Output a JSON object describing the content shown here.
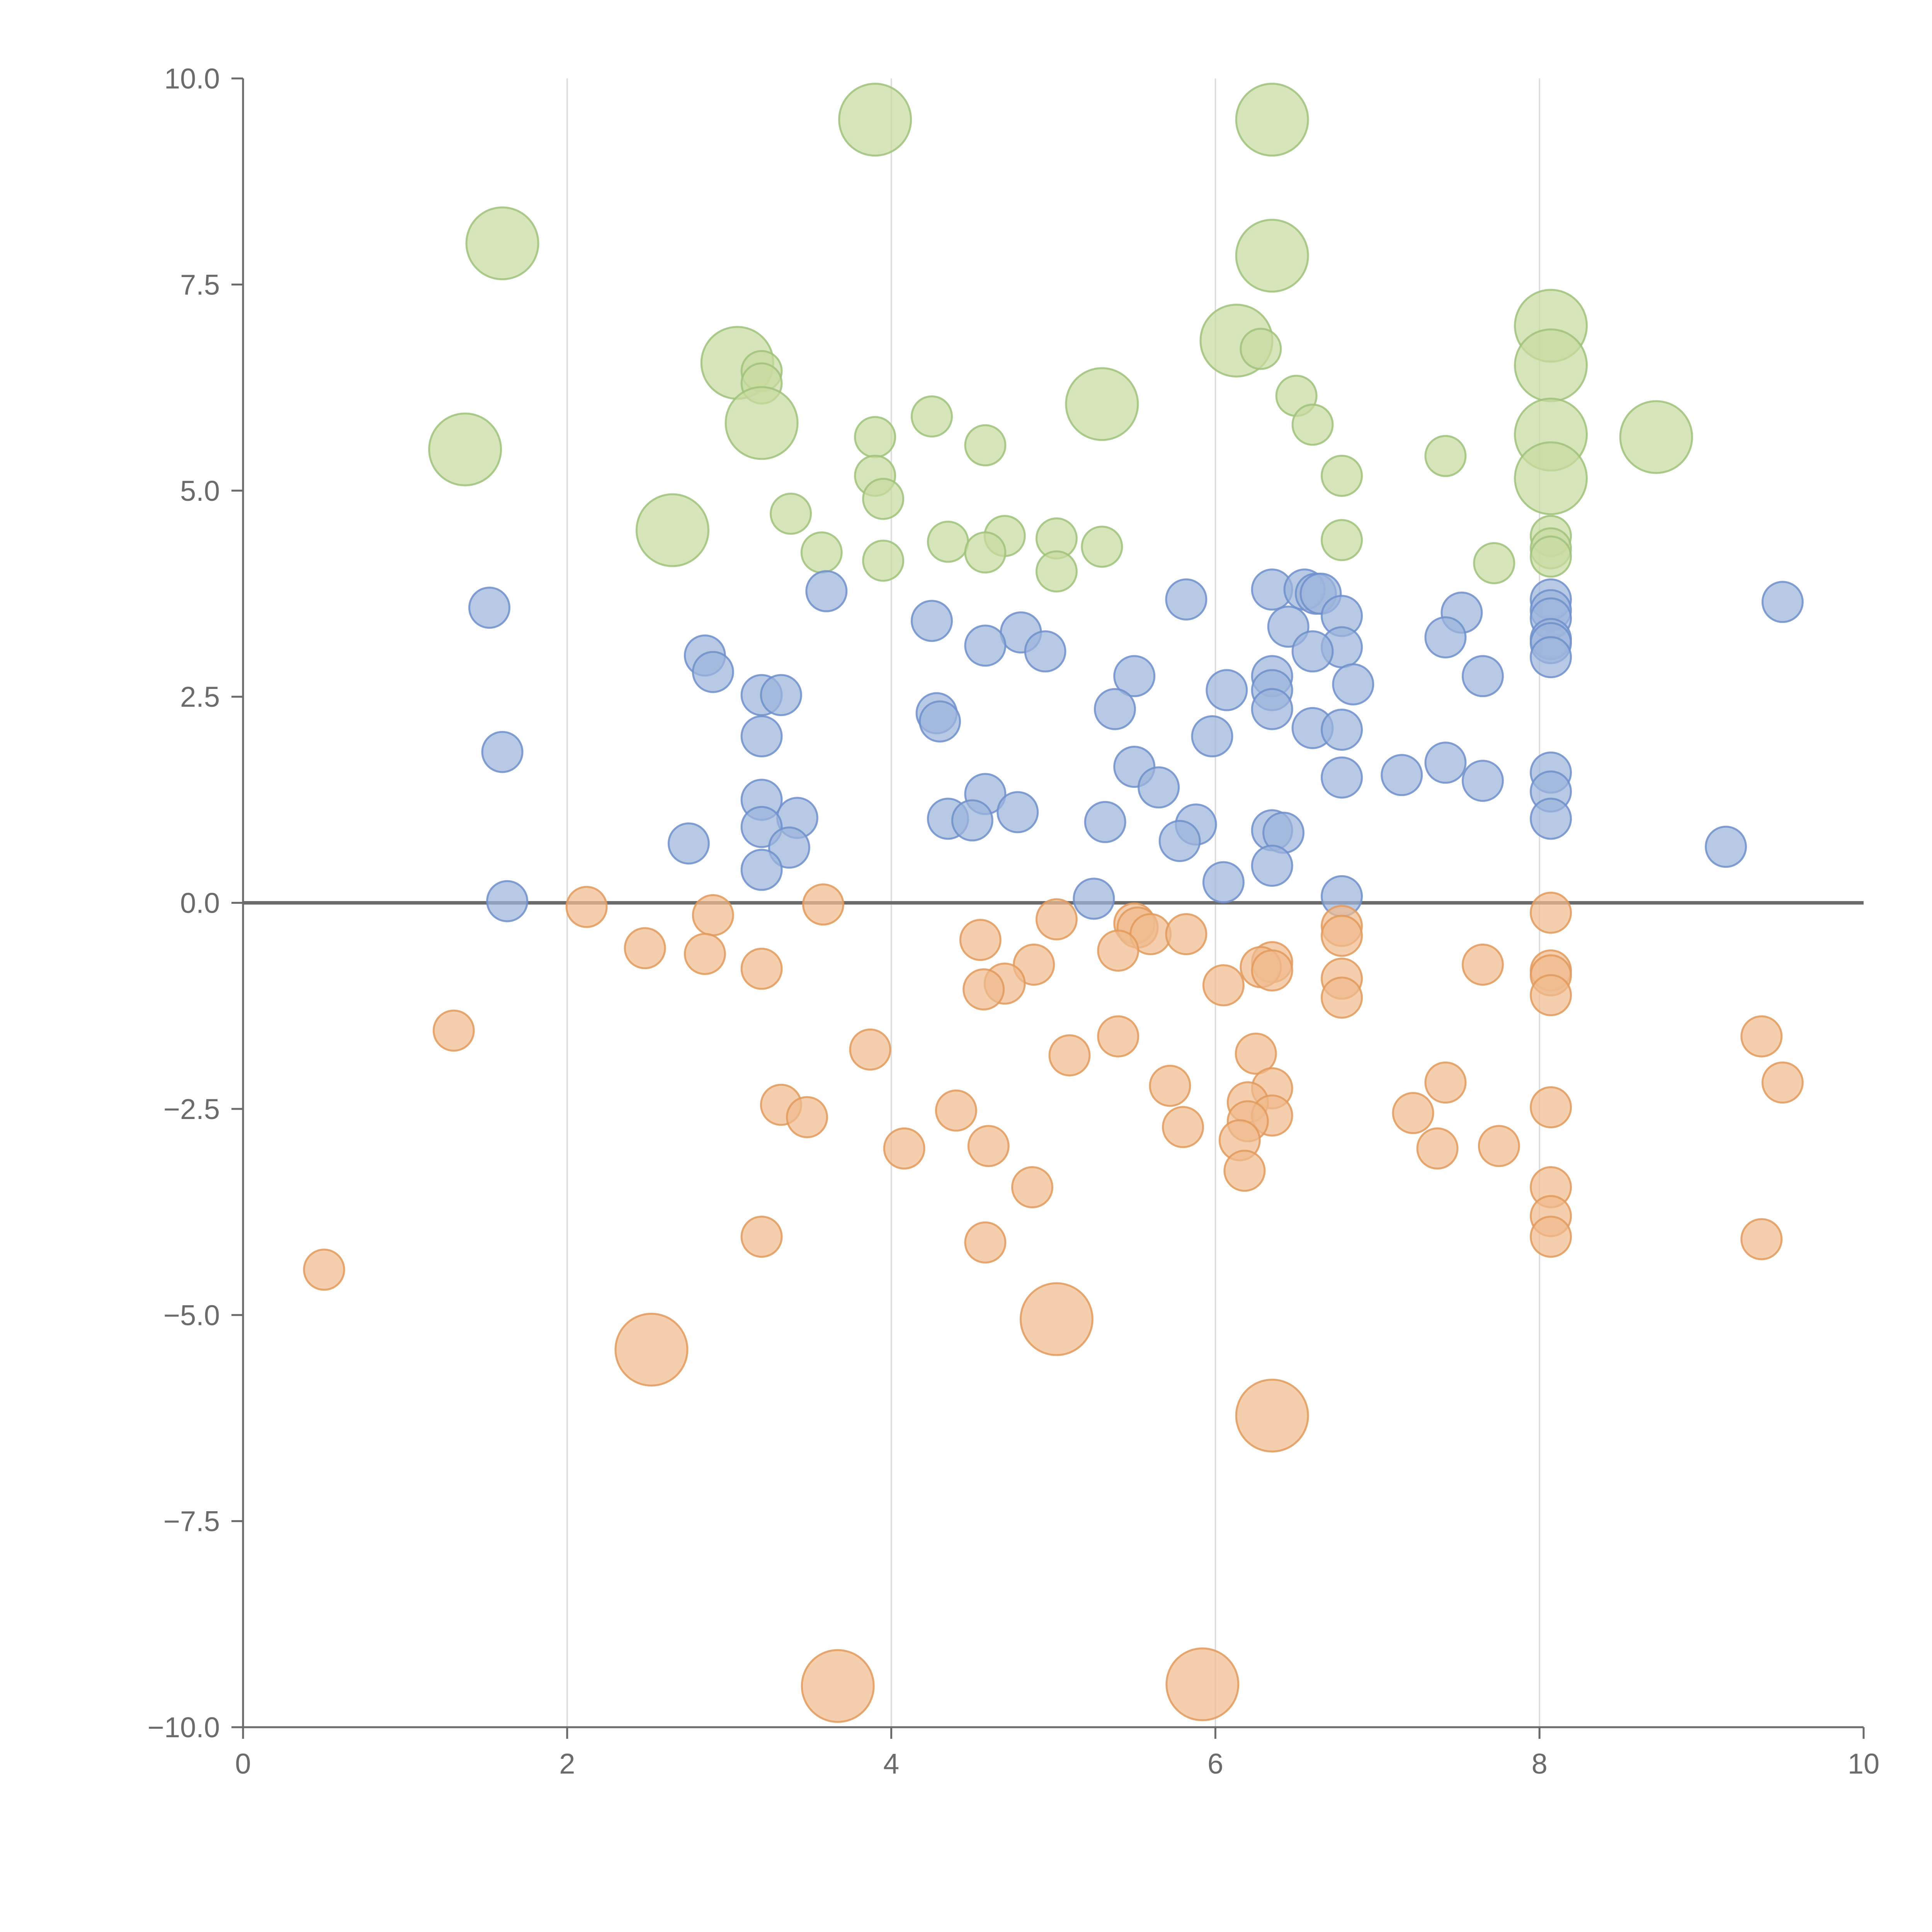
{
  "chart_data": {
    "type": "scatter",
    "title": "",
    "xlabel": "",
    "ylabel": "",
    "xlim": [
      0,
      10
    ],
    "ylim": [
      -10,
      10
    ],
    "x_ticks": [
      0,
      2,
      4,
      6,
      8,
      10
    ],
    "y_ticks": [
      -10.0,
      -7.5,
      -5.0,
      -2.5,
      0.0,
      2.5,
      5.0,
      7.5,
      10.0
    ],
    "x_tick_labels": [
      "0",
      "2",
      "4",
      "6",
      "8",
      "10"
    ],
    "y_tick_labels": [
      "−10.0",
      "−7.5",
      "−5.0",
      "−2.5",
      "0.0",
      "2.5",
      "5.0",
      "7.5",
      "10.0"
    ],
    "grid": {
      "vertical": true,
      "horizontal": false
    },
    "zero_line": true,
    "legend": "none",
    "colors": {
      "green": {
        "fill": "#c7dba0",
        "stroke": "#9fc27a"
      },
      "blue": {
        "fill": "#9db4dc",
        "stroke": "#6f8fcb"
      },
      "orange": {
        "fill": "#f0bb8e",
        "stroke": "#e29a5c"
      },
      "axis": "#6b6b6b",
      "grid": "#dcdcdc"
    },
    "series": [
      {
        "color_key": "green",
        "points": [
          {
            "x": 3.9,
            "y": 9.5,
            "size": "large"
          },
          {
            "x": 6.35,
            "y": 9.5,
            "size": "large"
          },
          {
            "x": 1.6,
            "y": 8.0,
            "size": "large"
          },
          {
            "x": 6.35,
            "y": 7.85,
            "size": "large"
          },
          {
            "x": 8.07,
            "y": 7.0,
            "size": "large"
          },
          {
            "x": 6.13,
            "y": 6.82,
            "size": "large"
          },
          {
            "x": 6.28,
            "y": 6.72,
            "size": "small"
          },
          {
            "x": 8.07,
            "y": 6.52,
            "size": "large"
          },
          {
            "x": 3.05,
            "y": 6.55,
            "size": "large"
          },
          {
            "x": 3.2,
            "y": 6.45,
            "size": "small"
          },
          {
            "x": 3.2,
            "y": 6.3,
            "size": "small"
          },
          {
            "x": 5.3,
            "y": 6.05,
            "size": "large"
          },
          {
            "x": 6.5,
            "y": 6.15,
            "size": "small"
          },
          {
            "x": 4.25,
            "y": 5.9,
            "size": "small"
          },
          {
            "x": 3.2,
            "y": 5.82,
            "size": "large"
          },
          {
            "x": 6.6,
            "y": 5.8,
            "size": "small"
          },
          {
            "x": 3.9,
            "y": 5.65,
            "size": "small"
          },
          {
            "x": 8.07,
            "y": 5.68,
            "size": "large"
          },
          {
            "x": 8.72,
            "y": 5.65,
            "size": "large"
          },
          {
            "x": 4.58,
            "y": 5.55,
            "size": "small"
          },
          {
            "x": 1.37,
            "y": 5.5,
            "size": "large"
          },
          {
            "x": 7.42,
            "y": 5.42,
            "size": "small"
          },
          {
            "x": 3.9,
            "y": 5.18,
            "size": "small"
          },
          {
            "x": 6.78,
            "y": 5.18,
            "size": "small"
          },
          {
            "x": 8.07,
            "y": 5.15,
            "size": "large"
          },
          {
            "x": 3.95,
            "y": 4.9,
            "size": "small"
          },
          {
            "x": 3.38,
            "y": 4.72,
            "size": "small"
          },
          {
            "x": 2.65,
            "y": 4.52,
            "size": "large"
          },
          {
            "x": 8.07,
            "y": 4.45,
            "size": "small"
          },
          {
            "x": 4.7,
            "y": 4.45,
            "size": "small"
          },
          {
            "x": 5.02,
            "y": 4.42,
            "size": "small"
          },
          {
            "x": 6.78,
            "y": 4.4,
            "size": "small"
          },
          {
            "x": 4.35,
            "y": 4.38,
            "size": "small"
          },
          {
            "x": 5.3,
            "y": 4.32,
            "size": "small"
          },
          {
            "x": 8.07,
            "y": 4.3,
            "size": "small"
          },
          {
            "x": 3.57,
            "y": 4.25,
            "size": "small"
          },
          {
            "x": 4.58,
            "y": 4.25,
            "size": "small"
          },
          {
            "x": 8.07,
            "y": 4.2,
            "size": "small"
          },
          {
            "x": 3.95,
            "y": 4.15,
            "size": "small"
          },
          {
            "x": 7.72,
            "y": 4.12,
            "size": "small"
          },
          {
            "x": 5.02,
            "y": 4.02,
            "size": "small"
          }
        ]
      },
      {
        "color_key": "blue",
        "points": [
          {
            "x": 6.35,
            "y": 3.8,
            "size": "small"
          },
          {
            "x": 6.55,
            "y": 3.8,
            "size": "small"
          },
          {
            "x": 6.62,
            "y": 3.75,
            "size": "small"
          },
          {
            "x": 6.65,
            "y": 3.75,
            "size": "small"
          },
          {
            "x": 3.6,
            "y": 3.78,
            "size": "small"
          },
          {
            "x": 5.82,
            "y": 3.68,
            "size": "small"
          },
          {
            "x": 8.07,
            "y": 3.68,
            "size": "small"
          },
          {
            "x": 9.5,
            "y": 3.65,
            "size": "small"
          },
          {
            "x": 1.52,
            "y": 3.58,
            "size": "small"
          },
          {
            "x": 8.07,
            "y": 3.55,
            "size": "small"
          },
          {
            "x": 7.52,
            "y": 3.52,
            "size": "small"
          },
          {
            "x": 6.78,
            "y": 3.48,
            "size": "small"
          },
          {
            "x": 8.07,
            "y": 3.45,
            "size": "small"
          },
          {
            "x": 4.25,
            "y": 3.42,
            "size": "small"
          },
          {
            "x": 6.45,
            "y": 3.35,
            "size": "small"
          },
          {
            "x": 4.8,
            "y": 3.28,
            "size": "small"
          },
          {
            "x": 7.42,
            "y": 3.22,
            "size": "small"
          },
          {
            "x": 8.07,
            "y": 3.2,
            "size": "small"
          },
          {
            "x": 8.07,
            "y": 3.15,
            "size": "small"
          },
          {
            "x": 4.58,
            "y": 3.12,
            "size": "small"
          },
          {
            "x": 6.78,
            "y": 3.1,
            "size": "small"
          },
          {
            "x": 6.6,
            "y": 3.05,
            "size": "small"
          },
          {
            "x": 4.95,
            "y": 3.05,
            "size": "small"
          },
          {
            "x": 2.85,
            "y": 3.0,
            "size": "small"
          },
          {
            "x": 8.07,
            "y": 2.98,
            "size": "small"
          },
          {
            "x": 2.9,
            "y": 2.8,
            "size": "small"
          },
          {
            "x": 5.5,
            "y": 2.75,
            "size": "small"
          },
          {
            "x": 6.35,
            "y": 2.75,
            "size": "small"
          },
          {
            "x": 7.65,
            "y": 2.75,
            "size": "small"
          },
          {
            "x": 6.85,
            "y": 2.65,
            "size": "small"
          },
          {
            "x": 6.35,
            "y": 2.58,
            "size": "small"
          },
          {
            "x": 6.07,
            "y": 2.58,
            "size": "small"
          },
          {
            "x": 3.2,
            "y": 2.52,
            "size": "small"
          },
          {
            "x": 3.32,
            "y": 2.52,
            "size": "small"
          },
          {
            "x": 5.38,
            "y": 2.35,
            "size": "small"
          },
          {
            "x": 6.35,
            "y": 2.35,
            "size": "small"
          },
          {
            "x": 4.28,
            "y": 2.3,
            "size": "small"
          },
          {
            "x": 4.3,
            "y": 2.2,
            "size": "small"
          },
          {
            "x": 6.6,
            "y": 2.12,
            "size": "small"
          },
          {
            "x": 6.78,
            "y": 2.1,
            "size": "small"
          },
          {
            "x": 3.2,
            "y": 2.02,
            "size": "small"
          },
          {
            "x": 5.98,
            "y": 2.02,
            "size": "small"
          },
          {
            "x": 1.6,
            "y": 1.83,
            "size": "small"
          },
          {
            "x": 7.42,
            "y": 1.7,
            "size": "small"
          },
          {
            "x": 5.5,
            "y": 1.65,
            "size": "small"
          },
          {
            "x": 8.07,
            "y": 1.58,
            "size": "small"
          },
          {
            "x": 7.15,
            "y": 1.55,
            "size": "small"
          },
          {
            "x": 6.78,
            "y": 1.52,
            "size": "small"
          },
          {
            "x": 7.65,
            "y": 1.48,
            "size": "small"
          },
          {
            "x": 5.65,
            "y": 1.4,
            "size": "small"
          },
          {
            "x": 8.07,
            "y": 1.35,
            "size": "small"
          },
          {
            "x": 4.58,
            "y": 1.32,
            "size": "small"
          },
          {
            "x": 3.2,
            "y": 1.25,
            "size": "small"
          },
          {
            "x": 4.78,
            "y": 1.1,
            "size": "small"
          },
          {
            "x": 3.42,
            "y": 1.03,
            "size": "small"
          },
          {
            "x": 8.07,
            "y": 1.02,
            "size": "small"
          },
          {
            "x": 4.35,
            "y": 1.02,
            "size": "small"
          },
          {
            "x": 4.5,
            "y": 1.0,
            "size": "small"
          },
          {
            "x": 5.32,
            "y": 0.98,
            "size": "small"
          },
          {
            "x": 5.88,
            "y": 0.95,
            "size": "small"
          },
          {
            "x": 3.2,
            "y": 0.92,
            "size": "small"
          },
          {
            "x": 6.35,
            "y": 0.88,
            "size": "small"
          },
          {
            "x": 6.42,
            "y": 0.85,
            "size": "small"
          },
          {
            "x": 5.78,
            "y": 0.75,
            "size": "small"
          },
          {
            "x": 2.75,
            "y": 0.72,
            "size": "small"
          },
          {
            "x": 9.15,
            "y": 0.68,
            "size": "small"
          },
          {
            "x": 3.37,
            "y": 0.67,
            "size": "small"
          },
          {
            "x": 6.35,
            "y": 0.45,
            "size": "small"
          },
          {
            "x": 3.2,
            "y": 0.4,
            "size": "small"
          },
          {
            "x": 6.05,
            "y": 0.25,
            "size": "small"
          },
          {
            "x": 6.78,
            "y": 0.08,
            "size": "small"
          },
          {
            "x": 5.25,
            "y": 0.05,
            "size": "small"
          },
          {
            "x": 1.63,
            "y": 0.02,
            "size": "small"
          }
        ]
      },
      {
        "color_key": "orange",
        "points": [
          {
            "x": 2.12,
            "y": -0.05,
            "size": "small"
          },
          {
            "x": 3.58,
            "y": -0.02,
            "size": "small"
          },
          {
            "x": 8.07,
            "y": -0.12,
            "size": "small"
          },
          {
            "x": 2.9,
            "y": -0.15,
            "size": "small"
          },
          {
            "x": 5.02,
            "y": -0.2,
            "size": "small"
          },
          {
            "x": 5.5,
            "y": -0.25,
            "size": "small"
          },
          {
            "x": 6.78,
            "y": -0.28,
            "size": "small"
          },
          {
            "x": 5.52,
            "y": -0.3,
            "size": "small"
          },
          {
            "x": 5.6,
            "y": -0.38,
            "size": "small"
          },
          {
            "x": 5.82,
            "y": -0.38,
            "size": "small"
          },
          {
            "x": 6.78,
            "y": -0.4,
            "size": "small"
          },
          {
            "x": 4.55,
            "y": -0.45,
            "size": "small"
          },
          {
            "x": 2.48,
            "y": -0.55,
            "size": "small"
          },
          {
            "x": 5.4,
            "y": -0.58,
            "size": "small"
          },
          {
            "x": 2.85,
            "y": -0.62,
            "size": "small"
          },
          {
            "x": 6.35,
            "y": -0.72,
            "size": "small"
          },
          {
            "x": 7.65,
            "y": -0.75,
            "size": "small"
          },
          {
            "x": 4.88,
            "y": -0.75,
            "size": "small"
          },
          {
            "x": 6.28,
            "y": -0.78,
            "size": "small"
          },
          {
            "x": 3.2,
            "y": -0.8,
            "size": "small"
          },
          {
            "x": 8.07,
            "y": -0.82,
            "size": "small"
          },
          {
            "x": 6.35,
            "y": -0.82,
            "size": "small"
          },
          {
            "x": 8.07,
            "y": -0.88,
            "size": "small"
          },
          {
            "x": 6.78,
            "y": -0.92,
            "size": "small"
          },
          {
            "x": 4.7,
            "y": -0.98,
            "size": "small"
          },
          {
            "x": 6.05,
            "y": -1.0,
            "size": "small"
          },
          {
            "x": 4.57,
            "y": -1.05,
            "size": "small"
          },
          {
            "x": 8.07,
            "y": -1.12,
            "size": "small"
          },
          {
            "x": 6.78,
            "y": -1.15,
            "size": "small"
          },
          {
            "x": 1.3,
            "y": -1.55,
            "size": "small"
          },
          {
            "x": 5.4,
            "y": -1.62,
            "size": "small"
          },
          {
            "x": 9.37,
            "y": -1.62,
            "size": "small"
          },
          {
            "x": 3.87,
            "y": -1.78,
            "size": "small"
          },
          {
            "x": 6.25,
            "y": -1.83,
            "size": "small"
          },
          {
            "x": 5.1,
            "y": -1.85,
            "size": "small"
          },
          {
            "x": 7.42,
            "y": -2.18,
            "size": "small"
          },
          {
            "x": 9.5,
            "y": -2.18,
            "size": "small"
          },
          {
            "x": 5.72,
            "y": -2.22,
            "size": "small"
          },
          {
            "x": 6.35,
            "y": -2.25,
            "size": "small"
          },
          {
            "x": 6.2,
            "y": -2.42,
            "size": "small"
          },
          {
            "x": 3.32,
            "y": -2.45,
            "size": "small"
          },
          {
            "x": 8.07,
            "y": -2.48,
            "size": "small"
          },
          {
            "x": 4.4,
            "y": -2.52,
            "size": "small"
          },
          {
            "x": 7.22,
            "y": -2.55,
            "size": "small"
          },
          {
            "x": 6.35,
            "y": -2.58,
            "size": "small"
          },
          {
            "x": 3.48,
            "y": -2.6,
            "size": "small"
          },
          {
            "x": 6.2,
            "y": -2.65,
            "size": "small"
          },
          {
            "x": 5.8,
            "y": -2.72,
            "size": "small"
          },
          {
            "x": 6.15,
            "y": -2.88,
            "size": "small"
          },
          {
            "x": 4.6,
            "y": -2.95,
            "size": "small"
          },
          {
            "x": 7.75,
            "y": -2.95,
            "size": "small"
          },
          {
            "x": 4.08,
            "y": -2.98,
            "size": "small"
          },
          {
            "x": 7.37,
            "y": -2.98,
            "size": "small"
          },
          {
            "x": 6.18,
            "y": -3.25,
            "size": "small"
          },
          {
            "x": 4.87,
            "y": -3.45,
            "size": "small"
          },
          {
            "x": 8.07,
            "y": -3.45,
            "size": "small"
          },
          {
            "x": 8.07,
            "y": -3.8,
            "size": "small"
          },
          {
            "x": 3.2,
            "y": -4.05,
            "size": "small"
          },
          {
            "x": 8.07,
            "y": -4.05,
            "size": "small"
          },
          {
            "x": 9.37,
            "y": -4.08,
            "size": "small"
          },
          {
            "x": 4.58,
            "y": -4.12,
            "size": "small"
          },
          {
            "x": 0.5,
            "y": -4.45,
            "size": "small"
          },
          {
            "x": 5.02,
            "y": -5.05,
            "size": "large"
          },
          {
            "x": 2.52,
            "y": -5.42,
            "size": "large"
          },
          {
            "x": 6.35,
            "y": -6.22,
            "size": "large"
          },
          {
            "x": 5.92,
            "y": -9.48,
            "size": "large"
          },
          {
            "x": 3.67,
            "y": -9.5,
            "size": "large"
          }
        ]
      }
    ]
  }
}
